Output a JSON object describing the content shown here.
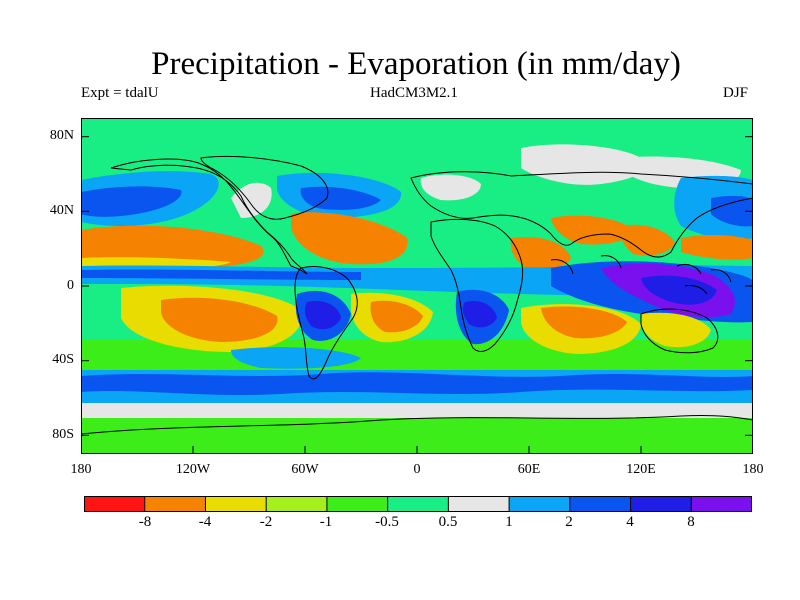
{
  "title": "Precipitation - Evaporation (in mm/day)",
  "experiment_label": "Expt = tdalU",
  "model_label": "HadCM3M2.1",
  "season_label": "DJF",
  "lat_ticks": [
    "80N",
    "40N",
    "0",
    "40S",
    "80S"
  ],
  "lon_ticks": [
    "180",
    "120W",
    "60W",
    "0",
    "60E",
    "120E",
    "180"
  ],
  "colorbar": {
    "colors": [
      "#ff1414",
      "#f58200",
      "#e8dc00",
      "#a5f01c",
      "#3ced1a",
      "#19ee84",
      "#e6e6e6",
      "#0aa5f5",
      "#0a55f0",
      "#1e1ee6",
      "#7a10ee"
    ],
    "labels": [
      "-8",
      "-4",
      "-2",
      "-1",
      "-0.5",
      "0.5",
      "1",
      "2",
      "4",
      "8"
    ]
  }
}
